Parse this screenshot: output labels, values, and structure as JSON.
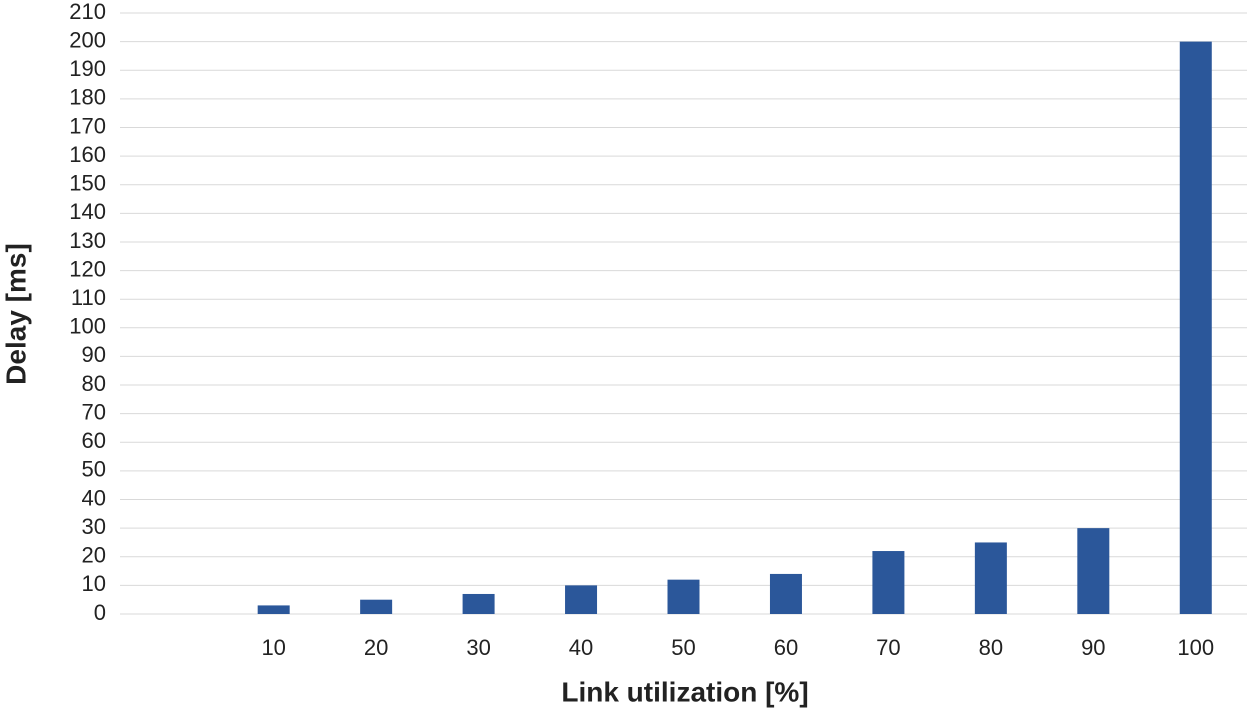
{
  "chart_data": {
    "type": "bar",
    "x_label": "Link utilization [%]",
    "y_label": "Delay [ms]",
    "categories": [
      null,
      "10",
      "20",
      "30",
      "40",
      "50",
      "60",
      "70",
      "80",
      "90",
      "100"
    ],
    "values": [
      null,
      3,
      5,
      7,
      10,
      12,
      14,
      22,
      25,
      30,
      200
    ],
    "color": "#2b579a",
    "ylim": [
      0,
      210
    ],
    "yticks": [
      0,
      10,
      20,
      30,
      40,
      50,
      60,
      70,
      80,
      90,
      100,
      110,
      120,
      130,
      140,
      150,
      160,
      170,
      180,
      190,
      200,
      210
    ],
    "grid": true
  }
}
